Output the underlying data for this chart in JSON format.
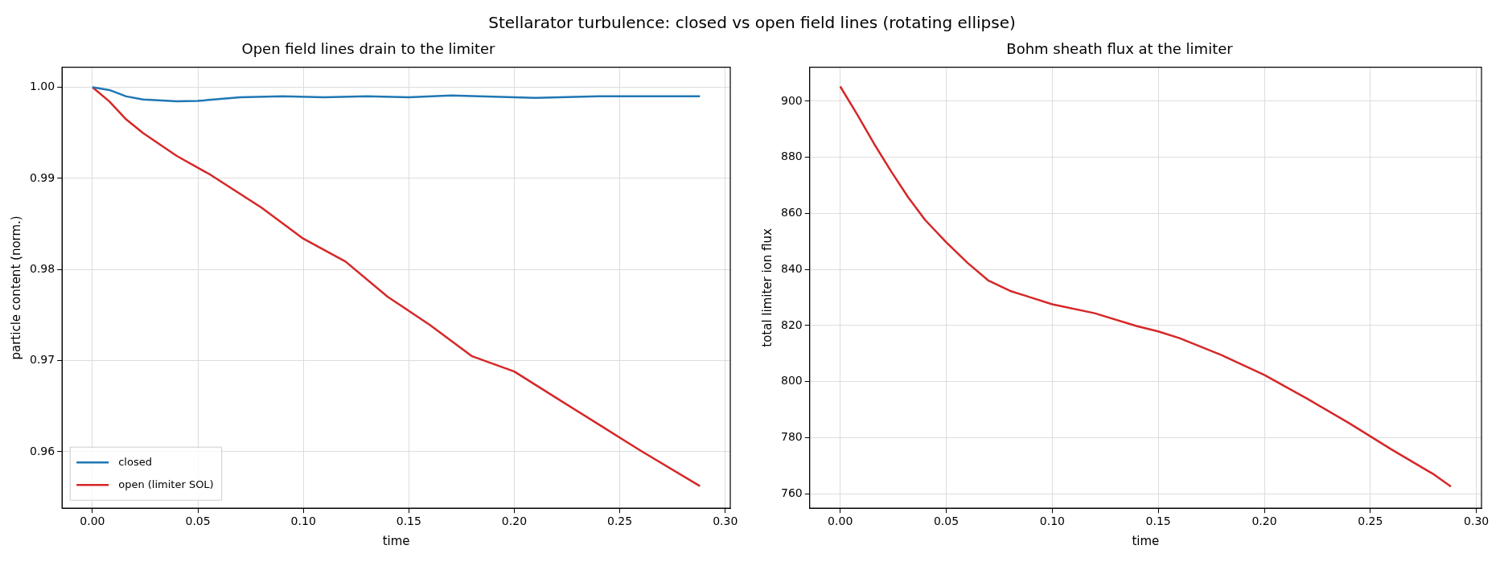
{
  "chart_data": [
    {
      "type": "line",
      "title": "Open field lines drain to the limiter",
      "xlabel": "time",
      "ylabel": "particle content (norm.)",
      "annotations": [
        "Stellarator turbulence: closed vs open field lines (rotating ellipse)"
      ],
      "xlim": [
        -0.0144,
        0.3024
      ],
      "ylim": [
        0.9538,
        1.0022
      ],
      "xticks": [
        {
          "value": 0,
          "label": "0.00"
        },
        {
          "value": 0.05,
          "label": "0.05"
        },
        {
          "value": 0.1,
          "label": "0.10"
        },
        {
          "value": 0.15,
          "label": "0.15"
        },
        {
          "value": 0.2,
          "label": "0.20"
        },
        {
          "value": 0.25,
          "label": "0.25"
        },
        {
          "value": 0.3,
          "label": "0.30"
        }
      ],
      "yticks": [
        {
          "value": 0.96,
          "label": "0.96"
        },
        {
          "value": 0.97,
          "label": "0.97"
        },
        {
          "value": 0.98,
          "label": "0.98"
        },
        {
          "value": 0.99,
          "label": "0.99"
        },
        {
          "value": 1.0,
          "label": "1.00"
        }
      ],
      "grid": true,
      "legend": "bottom left",
      "line_style": "solid",
      "series": [
        {
          "name": "closed",
          "color": "#1f77b4",
          "x": [
            0,
            0.008,
            0.016,
            0.024,
            0.04,
            0.05,
            0.07,
            0.09,
            0.11,
            0.13,
            0.15,
            0.17,
            0.21,
            0.24,
            0.288
          ],
          "values": [
            1.0,
            0.9997,
            0.999,
            0.99865,
            0.99845,
            0.9985,
            0.9989,
            0.999,
            0.9989,
            0.999,
            0.9989,
            0.9991,
            0.99884,
            0.999,
            0.999
          ]
        },
        {
          "name": "open (limiter SOL)",
          "color": "#d62728",
          "x": [
            0,
            0.008,
            0.016,
            0.024,
            0.04,
            0.056,
            0.08,
            0.1,
            0.12,
            0.14,
            0.16,
            0.18,
            0.2,
            0.22,
            0.24,
            0.26,
            0.288
          ],
          "values": [
            1.0,
            0.99845,
            0.99647,
            0.99498,
            0.99246,
            0.99039,
            0.98681,
            0.98338,
            0.98087,
            0.977,
            0.97391,
            0.97048,
            0.9688,
            0.96589,
            0.963,
            0.9601,
            0.95623
          ]
        }
      ]
    },
    {
      "type": "line",
      "title": "Bohm sheath flux at the limiter",
      "xlabel": "time",
      "ylabel": "total limiter ion flux",
      "xlim": [
        -0.0144,
        0.3024
      ],
      "ylim": [
        754.85,
        912.15
      ],
      "xticks": [
        {
          "value": 0,
          "label": "0.00"
        },
        {
          "value": 0.05,
          "label": "0.05"
        },
        {
          "value": 0.1,
          "label": "0.10"
        },
        {
          "value": 0.15,
          "label": "0.15"
        },
        {
          "value": 0.2,
          "label": "0.20"
        },
        {
          "value": 0.25,
          "label": "0.25"
        },
        {
          "value": 0.3,
          "label": "0.30"
        }
      ],
      "yticks": [
        760,
        780,
        800,
        820,
        840,
        860,
        880,
        900
      ],
      "grid": true,
      "line_style": "solid",
      "series": [
        {
          "color": "#d62728",
          "x": [
            0,
            0.008,
            0.016,
            0.024,
            0.032,
            0.04,
            0.05,
            0.06,
            0.07,
            0.08,
            0.09,
            0.1,
            0.12,
            0.14,
            0.15,
            0.16,
            0.18,
            0.2,
            0.22,
            0.24,
            0.26,
            0.28,
            0.288
          ],
          "values": [
            905.3,
            895.3,
            884.8,
            875,
            865.8,
            857.7,
            849.7,
            842.4,
            836,
            832.4,
            830,
            827.6,
            824.4,
            819.8,
            817.9,
            815.5,
            809.4,
            802.4,
            794,
            785.2,
            775.8,
            766.9,
            762.6
          ]
        }
      ]
    }
  ]
}
